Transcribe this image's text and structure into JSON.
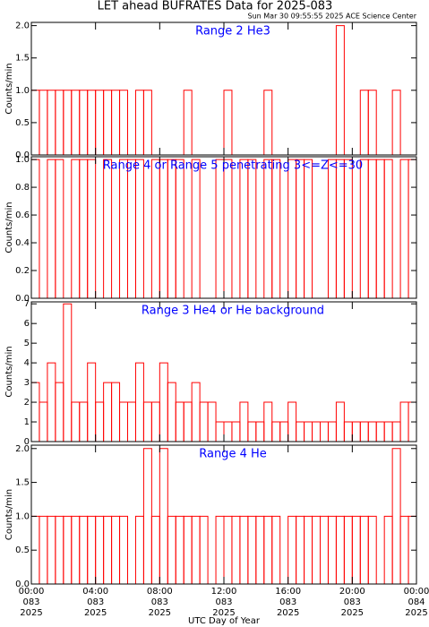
{
  "title": "LET ahead BUFRATES Data for 2025-083",
  "subtitle": "Sun Mar 30 09:55:55 2025 ACE Science Center",
  "x_label": "UTC Day of Year",
  "chart_data": [
    {
      "type": "step",
      "title": "Range 2 He3",
      "y_label": "Counts/min",
      "color": "#ff0000",
      "x": [
        0,
        0.5,
        1,
        1.5,
        2,
        2.5,
        3,
        3.5,
        4,
        4.5,
        5,
        5.5,
        6,
        6.5,
        7,
        7.5,
        8,
        8.5,
        9,
        9.5,
        10,
        10.5,
        11,
        11.5,
        12,
        12.5,
        13,
        13.5,
        14,
        14.5,
        15,
        15.5,
        16,
        16.5,
        17,
        17.5,
        18,
        18.5,
        19,
        19.5,
        20,
        20.5,
        21,
        21.5,
        22,
        22.5,
        23,
        23.5
      ],
      "values": [
        1,
        1,
        1,
        1,
        1,
        1,
        1,
        1,
        1,
        1,
        1,
        1,
        0,
        1,
        1,
        0,
        0,
        0,
        0,
        1,
        0,
        0,
        0,
        0,
        1,
        0,
        0,
        0,
        0,
        1,
        0,
        0,
        0,
        0,
        0,
        0,
        0,
        0,
        2,
        0,
        0,
        1,
        1,
        0,
        0,
        1,
        0,
        0
      ],
      "ylim": [
        0,
        2.05
      ],
      "yticks": [
        {
          "value": 0,
          "label": "0.0"
        },
        {
          "value": 0.5,
          "label": "0.5"
        },
        {
          "value": 1,
          "label": "1.0"
        },
        {
          "value": 1.5,
          "label": "1.5"
        },
        {
          "value": 2,
          "label": "2.0"
        }
      ]
    },
    {
      "type": "step",
      "title": "Range 4 or Range 5 penetrating 3<=Z<=30",
      "y_label": "Counts/min",
      "color": "#ff0000",
      "x": [
        0,
        0.5,
        1,
        1.5,
        2,
        2.5,
        3,
        3.5,
        4,
        4.5,
        5,
        5.5,
        6,
        6.5,
        7,
        7.5,
        8,
        8.5,
        9,
        9.5,
        10,
        10.5,
        11,
        11.5,
        12,
        12.5,
        13,
        13.5,
        14,
        14.5,
        15,
        15.5,
        16,
        16.5,
        17,
        17.5,
        18,
        18.5,
        19,
        19.5,
        20,
        20.5,
        21,
        21.5,
        22,
        22.5,
        23,
        23.5
      ],
      "values": [
        1,
        0,
        1,
        1,
        0,
        1,
        1,
        1,
        0,
        1,
        0,
        1,
        1,
        1,
        0,
        1,
        1,
        1,
        1,
        0,
        1,
        0,
        0,
        1,
        1,
        0,
        1,
        1,
        0,
        1,
        1,
        0,
        1,
        1,
        1,
        0,
        0,
        1,
        1,
        1,
        0,
        1,
        1,
        1,
        1,
        0,
        1,
        1
      ],
      "ylim": [
        0,
        1.02
      ],
      "yticks": [
        {
          "value": 0,
          "label": "0.0"
        },
        {
          "value": 0.2,
          "label": "0.2"
        },
        {
          "value": 0.4,
          "label": "0.4"
        },
        {
          "value": 0.6,
          "label": "0.6"
        },
        {
          "value": 0.8,
          "label": "0.8"
        },
        {
          "value": 1,
          "label": "1.0"
        }
      ]
    },
    {
      "type": "step",
      "title": "Range 3 He4 or He background",
      "y_label": "Counts/min",
      "color": "#ff0000",
      "x": [
        0,
        0.5,
        1,
        1.5,
        2,
        2.5,
        3,
        3.5,
        4,
        4.5,
        5,
        5.5,
        6,
        6.5,
        7,
        7.5,
        8,
        8.5,
        9,
        9.5,
        10,
        10.5,
        11,
        11.5,
        12,
        12.5,
        13,
        13.5,
        14,
        14.5,
        15,
        15.5,
        16,
        16.5,
        17,
        17.5,
        18,
        18.5,
        19,
        19.5,
        20,
        20.5,
        21,
        21.5,
        22,
        22.5,
        23,
        23.5
      ],
      "values": [
        3,
        2,
        4,
        3,
        7,
        2,
        2,
        4,
        2,
        3,
        3,
        2,
        2,
        4,
        2,
        2,
        4,
        3,
        2,
        2,
        3,
        2,
        2,
        1,
        1,
        1,
        2,
        1,
        1,
        2,
        1,
        1,
        2,
        1,
        1,
        1,
        1,
        1,
        2,
        1,
        1,
        1,
        1,
        1,
        1,
        1,
        2,
        2
      ],
      "ylim": [
        0,
        7.1
      ],
      "yticks": [
        0,
        1,
        2,
        3,
        4,
        5,
        6,
        7
      ]
    },
    {
      "type": "step",
      "title": "Range 4 He",
      "y_label": "Counts/min",
      "color": "#ff0000",
      "x": [
        0,
        0.5,
        1,
        1.5,
        2,
        2.5,
        3,
        3.5,
        4,
        4.5,
        5,
        5.5,
        6,
        6.5,
        7,
        7.5,
        8,
        8.5,
        9,
        9.5,
        10,
        10.5,
        11,
        11.5,
        12,
        12.5,
        13,
        13.5,
        14,
        14.5,
        15,
        15.5,
        16,
        16.5,
        17,
        17.5,
        18,
        18.5,
        19,
        19.5,
        20,
        20.5,
        21,
        21.5,
        22,
        22.5,
        23,
        23.5
      ],
      "values": [
        1,
        1,
        1,
        1,
        1,
        1,
        1,
        1,
        1,
        1,
        1,
        1,
        0,
        1,
        2,
        1,
        2,
        1,
        1,
        1,
        1,
        1,
        0,
        1,
        1,
        1,
        1,
        1,
        1,
        1,
        1,
        0,
        1,
        1,
        1,
        1,
        1,
        1,
        1,
        1,
        1,
        1,
        1,
        0,
        1,
        2,
        1,
        1
      ],
      "ylim": [
        0,
        2.05
      ],
      "yticks": [
        {
          "value": 0,
          "label": "0.0"
        },
        {
          "value": 0.5,
          "label": "0.5"
        },
        {
          "value": 1,
          "label": "1.0"
        },
        {
          "value": 1.5,
          "label": "1.5"
        },
        {
          "value": 2,
          "label": "2.0"
        }
      ],
      "xlim": [
        0,
        24
      ],
      "xticks": [
        {
          "value": 0,
          "label": [
            "00:00",
            "083",
            "2025"
          ]
        },
        {
          "value": 4,
          "label": [
            "04:00",
            "083",
            "2025"
          ]
        },
        {
          "value": 8,
          "label": [
            "08:00",
            "083",
            "2025"
          ]
        },
        {
          "value": 12,
          "label": [
            "12:00",
            "083",
            "2025"
          ]
        },
        {
          "value": 16,
          "label": [
            "16:00",
            "083",
            "2025"
          ]
        },
        {
          "value": 20,
          "label": [
            "20:00",
            "083",
            "2025"
          ]
        },
        {
          "value": 24,
          "label": [
            "00:00",
            "084",
            "2025"
          ]
        }
      ]
    }
  ]
}
